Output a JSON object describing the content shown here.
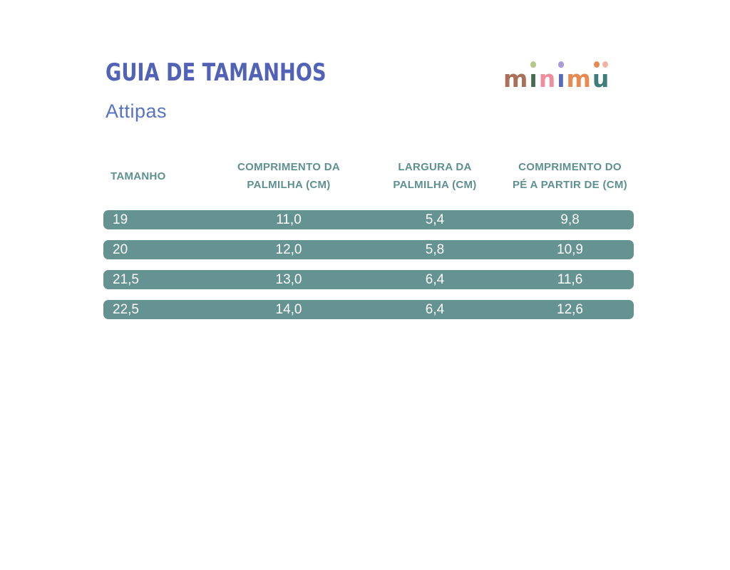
{
  "header": {
    "title": "GUIA DE TAMANHOS",
    "subtitle": "Attipas"
  },
  "logo": {
    "brand": "minimü",
    "letters": [
      {
        "char": "m",
        "color": "#A97159"
      },
      {
        "char": "ı",
        "color": "#476B52",
        "dot_color": "#B5C98A"
      },
      {
        "char": "n",
        "color": "#F18E9E"
      },
      {
        "char": "ı",
        "color": "#5968BC",
        "dot_color": "#A89ADB"
      },
      {
        "char": "m",
        "color": "#E98A52"
      },
      {
        "char": "u",
        "color": "#3F7D7B",
        "dot_left_color": "#E98A52",
        "dot_right_color": "#F0B3A5"
      }
    ]
  },
  "table": {
    "columns": [
      {
        "line1": "TAMANHO"
      },
      {
        "line1": "COMPRIMENTO DA",
        "line2": "PALMILHA (CM)"
      },
      {
        "line1": "LARGURA DA",
        "line2": "PALMILHA (CM)"
      },
      {
        "line1": "COMPRIMENTO DO",
        "line2": "PÉ A PARTIR DE (CM)"
      }
    ],
    "rows": [
      [
        "19",
        "11,0",
        "5,4",
        "9,8"
      ],
      [
        "20",
        "12,0",
        "5,8",
        "10,9"
      ],
      [
        "21,5",
        "13,0",
        "6,4",
        "11,6"
      ],
      [
        "22,5",
        "14,0",
        "6,4",
        "12,6"
      ]
    ]
  },
  "colors": {
    "title_text": "#5263B7",
    "subtitle_text": "#5673C4",
    "table_header_text": "#5E9090",
    "row_background": "#649392",
    "row_text": "#FFFFFF"
  }
}
